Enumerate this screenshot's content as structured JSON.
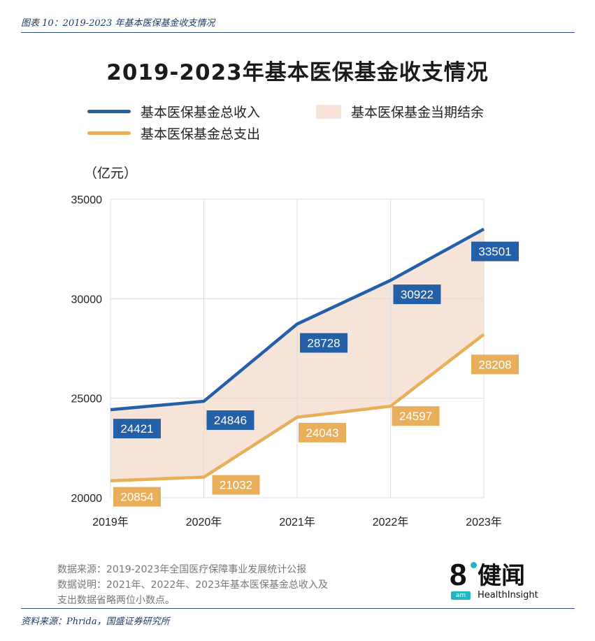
{
  "figure_caption": "图表 10：2019-2023 年基本医保基金收支情况",
  "source_caption": "资料来源：Phrida，国盛证券研究所",
  "chart_data": {
    "type": "line",
    "title": "2019-2023年基本医保基金收支情况",
    "unit_label": "（亿元）",
    "categories": [
      "2019年",
      "2020年",
      "2021年",
      "2022年",
      "2023年"
    ],
    "series": [
      {
        "name": "基本医保基金总收入",
        "values": [
          24421,
          24846,
          28728,
          30922,
          33501
        ],
        "color": "#2360a8"
      },
      {
        "name": "基本医保基金总支出",
        "values": [
          20854,
          21032,
          24043,
          24597,
          28208
        ],
        "color": "#e9ae5a"
      }
    ],
    "area_legend": "基本医保基金当期结余",
    "area_color": "#f7e4d9",
    "ylim": [
      20000,
      35000
    ],
    "yticks": [
      20000,
      25000,
      30000,
      35000
    ],
    "grid": true,
    "legend_position": "top"
  },
  "notes": {
    "line1": "数据来源：2019-2023年全国医疗保障事业发展统计公报",
    "line2": "数据说明：2021年、2022年、2023年基本医保基金总收入及",
    "line3": "支出数据省略两位小数点。"
  },
  "logo": {
    "digit": "8",
    "name": "健闻",
    "badge": "am",
    "english": "HealthInsight"
  }
}
